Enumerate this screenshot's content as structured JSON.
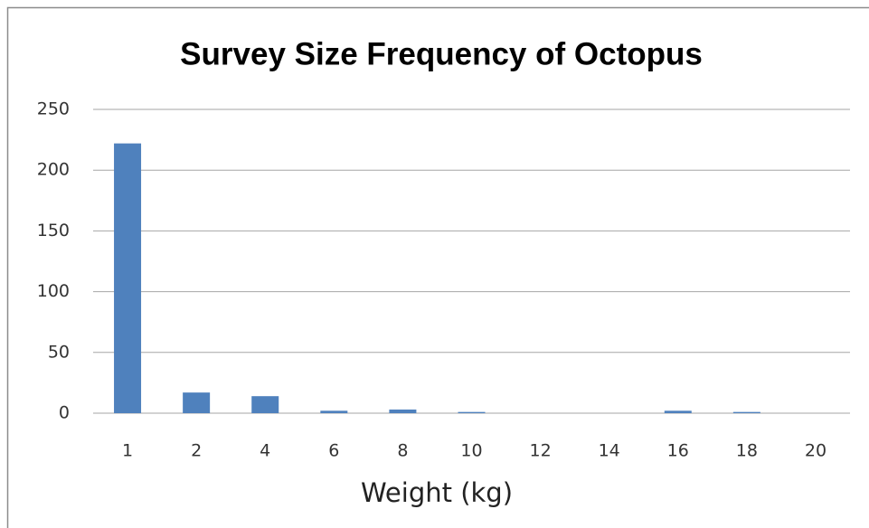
{
  "chart_data": {
    "type": "bar",
    "title": "Survey Size Frequency of Octopus",
    "x_label": "Weight (kg)",
    "categories": [
      "1",
      "2",
      "4",
      "6",
      "8",
      "10",
      "12",
      "14",
      "16",
      "18",
      "20"
    ],
    "values": [
      222,
      17,
      14,
      2,
      3,
      1,
      0,
      0,
      2,
      1,
      0
    ],
    "color": "#4f81bd",
    "ylim": [
      0,
      250
    ],
    "yticks": [
      0,
      50,
      100,
      150,
      200,
      250
    ],
    "grid": true
  }
}
